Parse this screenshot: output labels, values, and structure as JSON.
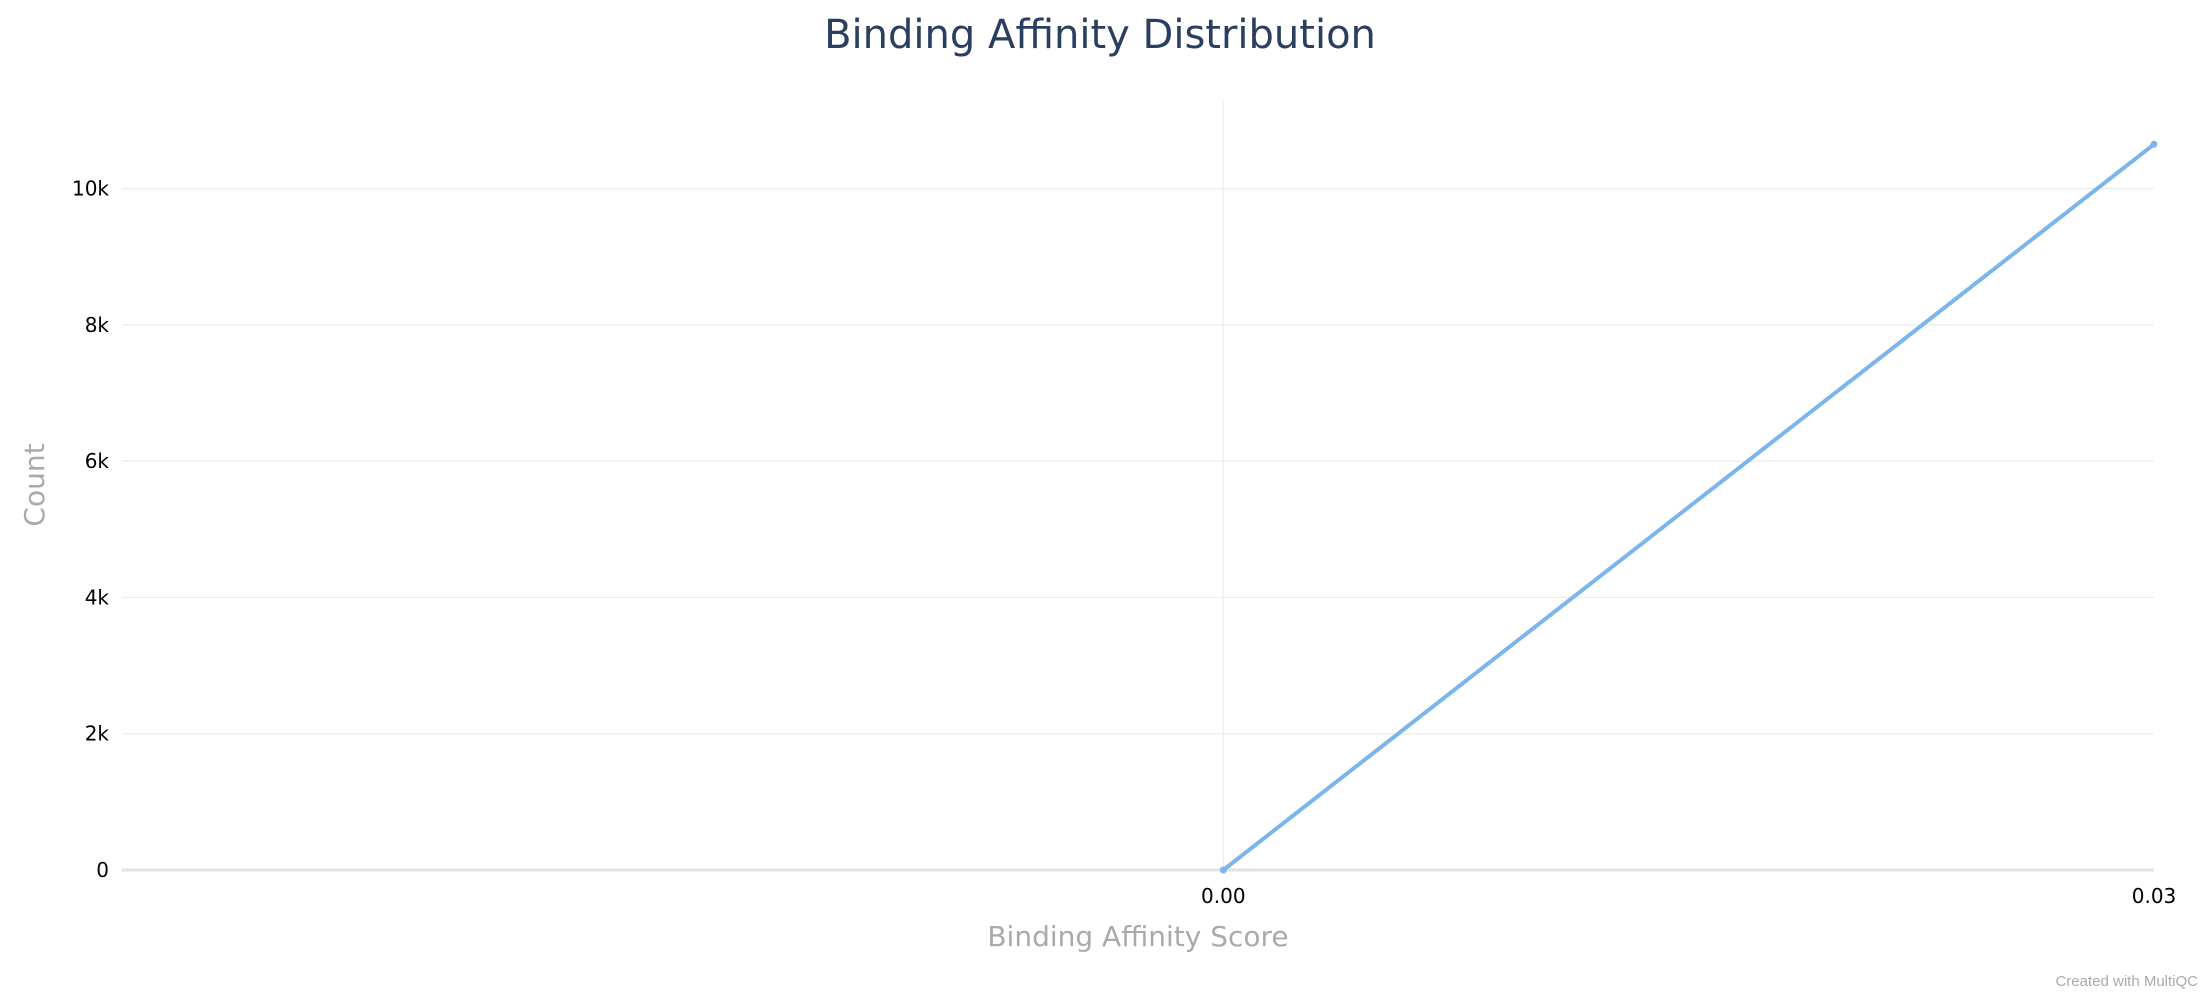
{
  "chart_data": {
    "type": "line",
    "title": "Binding Affinity Distribution",
    "xlabel": "Binding Affinity Score",
    "ylabel": "Count",
    "xlim": [
      -0.0355,
      0.03
    ],
    "ylim": [
      0,
      11300
    ],
    "x_ticks": [
      {
        "value": 0.0,
        "label": "0.00"
      },
      {
        "value": 0.03,
        "label": "0.03"
      }
    ],
    "y_ticks": [
      {
        "value": 0,
        "label": "0"
      },
      {
        "value": 2000,
        "label": "2k"
      },
      {
        "value": 4000,
        "label": "4k"
      },
      {
        "value": 6000,
        "label": "6k"
      },
      {
        "value": 8000,
        "label": "8k"
      },
      {
        "value": 10000,
        "label": "10k"
      }
    ],
    "grid": true,
    "series": [
      {
        "color": "#7cb5ec",
        "x": [
          0.0,
          0.03
        ],
        "y": [
          0,
          10650
        ]
      }
    ]
  },
  "credit": "Created with MultiQC"
}
